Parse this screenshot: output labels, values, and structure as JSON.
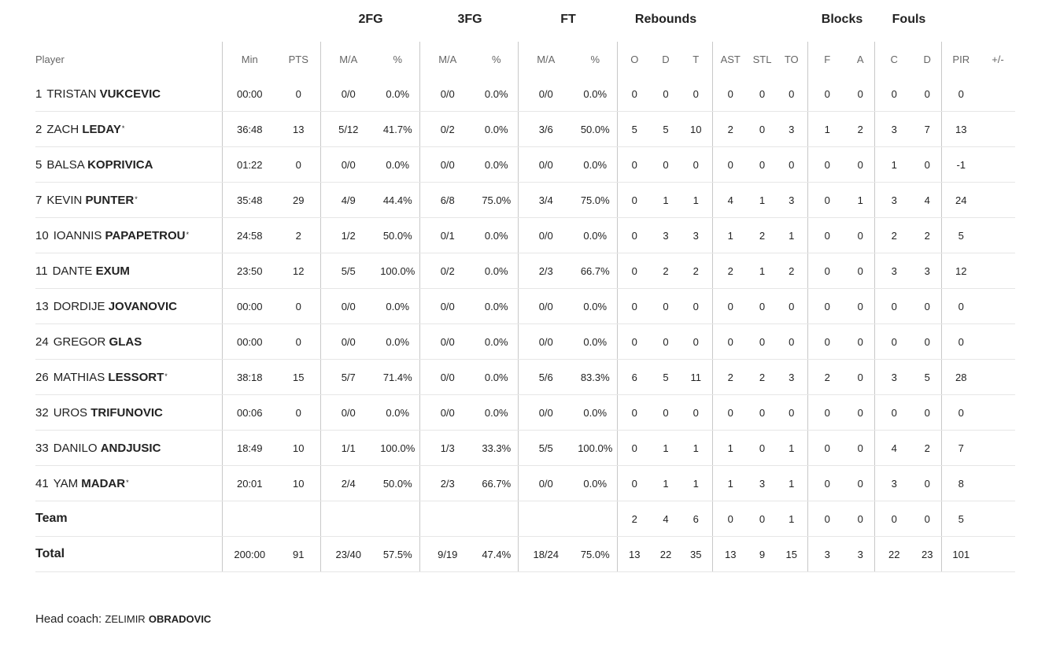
{
  "group_headers": {
    "fg2": "2FG",
    "fg3": "3FG",
    "ft": "FT",
    "rebounds": "Rebounds",
    "blocks": "Blocks",
    "fouls": "Fouls"
  },
  "columns": {
    "player": "Player",
    "min": "Min",
    "pts": "PTS",
    "fg2_ma": "M/A",
    "fg2_pct": "%",
    "fg3_ma": "M/A",
    "fg3_pct": "%",
    "ft_ma": "M/A",
    "ft_pct": "%",
    "reb_o": "O",
    "reb_d": "D",
    "reb_t": "T",
    "ast": "AST",
    "stl": "STL",
    "to": "TO",
    "blk_f": "F",
    "blk_a": "A",
    "foul_c": "C",
    "foul_d": "D",
    "pir": "PIR",
    "plusminus": "+/-"
  },
  "players": [
    {
      "num": "1",
      "first": "TRISTAN",
      "last": "VUKCEVIC",
      "starter": "",
      "min": "00:00",
      "pts": "0",
      "fg2_ma": "0/0",
      "fg2_pct": "0.0%",
      "fg3_ma": "0/0",
      "fg3_pct": "0.0%",
      "ft_ma": "0/0",
      "ft_pct": "0.0%",
      "reb_o": "0",
      "reb_d": "0",
      "reb_t": "0",
      "ast": "0",
      "stl": "0",
      "to": "0",
      "blk_f": "0",
      "blk_a": "0",
      "foul_c": "0",
      "foul_d": "0",
      "pir": "0",
      "plusminus": ""
    },
    {
      "num": "2",
      "first": "ZACH",
      "last": "LEDAY",
      "starter": "*",
      "min": "36:48",
      "pts": "13",
      "fg2_ma": "5/12",
      "fg2_pct": "41.7%",
      "fg3_ma": "0/2",
      "fg3_pct": "0.0%",
      "ft_ma": "3/6",
      "ft_pct": "50.0%",
      "reb_o": "5",
      "reb_d": "5",
      "reb_t": "10",
      "ast": "2",
      "stl": "0",
      "to": "3",
      "blk_f": "1",
      "blk_a": "2",
      "foul_c": "3",
      "foul_d": "7",
      "pir": "13",
      "plusminus": ""
    },
    {
      "num": "5",
      "first": "BALSA",
      "last": "KOPRIVICA",
      "starter": "",
      "min": "01:22",
      "pts": "0",
      "fg2_ma": "0/0",
      "fg2_pct": "0.0%",
      "fg3_ma": "0/0",
      "fg3_pct": "0.0%",
      "ft_ma": "0/0",
      "ft_pct": "0.0%",
      "reb_o": "0",
      "reb_d": "0",
      "reb_t": "0",
      "ast": "0",
      "stl": "0",
      "to": "0",
      "blk_f": "0",
      "blk_a": "0",
      "foul_c": "1",
      "foul_d": "0",
      "pir": "-1",
      "plusminus": ""
    },
    {
      "num": "7",
      "first": "KEVIN",
      "last": "PUNTER",
      "starter": "*",
      "min": "35:48",
      "pts": "29",
      "fg2_ma": "4/9",
      "fg2_pct": "44.4%",
      "fg3_ma": "6/8",
      "fg3_pct": "75.0%",
      "ft_ma": "3/4",
      "ft_pct": "75.0%",
      "reb_o": "0",
      "reb_d": "1",
      "reb_t": "1",
      "ast": "4",
      "stl": "1",
      "to": "3",
      "blk_f": "0",
      "blk_a": "1",
      "foul_c": "3",
      "foul_d": "4",
      "pir": "24",
      "plusminus": ""
    },
    {
      "num": "10",
      "first": "IOANNIS",
      "last": "PAPAPETROU",
      "starter": "*",
      "min": "24:58",
      "pts": "2",
      "fg2_ma": "1/2",
      "fg2_pct": "50.0%",
      "fg3_ma": "0/1",
      "fg3_pct": "0.0%",
      "ft_ma": "0/0",
      "ft_pct": "0.0%",
      "reb_o": "0",
      "reb_d": "3",
      "reb_t": "3",
      "ast": "1",
      "stl": "2",
      "to": "1",
      "blk_f": "0",
      "blk_a": "0",
      "foul_c": "2",
      "foul_d": "2",
      "pir": "5",
      "plusminus": ""
    },
    {
      "num": "11",
      "first": "DANTE",
      "last": "EXUM",
      "starter": "",
      "min": "23:50",
      "pts": "12",
      "fg2_ma": "5/5",
      "fg2_pct": "100.0%",
      "fg3_ma": "0/2",
      "fg3_pct": "0.0%",
      "ft_ma": "2/3",
      "ft_pct": "66.7%",
      "reb_o": "0",
      "reb_d": "2",
      "reb_t": "2",
      "ast": "2",
      "stl": "1",
      "to": "2",
      "blk_f": "0",
      "blk_a": "0",
      "foul_c": "3",
      "foul_d": "3",
      "pir": "12",
      "plusminus": ""
    },
    {
      "num": "13",
      "first": "DORDIJE",
      "last": "JOVANOVIC",
      "starter": "",
      "min": "00:00",
      "pts": "0",
      "fg2_ma": "0/0",
      "fg2_pct": "0.0%",
      "fg3_ma": "0/0",
      "fg3_pct": "0.0%",
      "ft_ma": "0/0",
      "ft_pct": "0.0%",
      "reb_o": "0",
      "reb_d": "0",
      "reb_t": "0",
      "ast": "0",
      "stl": "0",
      "to": "0",
      "blk_f": "0",
      "blk_a": "0",
      "foul_c": "0",
      "foul_d": "0",
      "pir": "0",
      "plusminus": ""
    },
    {
      "num": "24",
      "first": "GREGOR",
      "last": "GLAS",
      "starter": "",
      "min": "00:00",
      "pts": "0",
      "fg2_ma": "0/0",
      "fg2_pct": "0.0%",
      "fg3_ma": "0/0",
      "fg3_pct": "0.0%",
      "ft_ma": "0/0",
      "ft_pct": "0.0%",
      "reb_o": "0",
      "reb_d": "0",
      "reb_t": "0",
      "ast": "0",
      "stl": "0",
      "to": "0",
      "blk_f": "0",
      "blk_a": "0",
      "foul_c": "0",
      "foul_d": "0",
      "pir": "0",
      "plusminus": ""
    },
    {
      "num": "26",
      "first": "MATHIAS",
      "last": "LESSORT",
      "starter": "*",
      "min": "38:18",
      "pts": "15",
      "fg2_ma": "5/7",
      "fg2_pct": "71.4%",
      "fg3_ma": "0/0",
      "fg3_pct": "0.0%",
      "ft_ma": "5/6",
      "ft_pct": "83.3%",
      "reb_o": "6",
      "reb_d": "5",
      "reb_t": "11",
      "ast": "2",
      "stl": "2",
      "to": "3",
      "blk_f": "2",
      "blk_a": "0",
      "foul_c": "3",
      "foul_d": "5",
      "pir": "28",
      "plusminus": ""
    },
    {
      "num": "32",
      "first": "UROS",
      "last": "TRIFUNOVIC",
      "starter": "",
      "min": "00:06",
      "pts": "0",
      "fg2_ma": "0/0",
      "fg2_pct": "0.0%",
      "fg3_ma": "0/0",
      "fg3_pct": "0.0%",
      "ft_ma": "0/0",
      "ft_pct": "0.0%",
      "reb_o": "0",
      "reb_d": "0",
      "reb_t": "0",
      "ast": "0",
      "stl": "0",
      "to": "0",
      "blk_f": "0",
      "blk_a": "0",
      "foul_c": "0",
      "foul_d": "0",
      "pir": "0",
      "plusminus": ""
    },
    {
      "num": "33",
      "first": "DANILO",
      "last": "ANDJUSIC",
      "starter": "",
      "min": "18:49",
      "pts": "10",
      "fg2_ma": "1/1",
      "fg2_pct": "100.0%",
      "fg3_ma": "1/3",
      "fg3_pct": "33.3%",
      "ft_ma": "5/5",
      "ft_pct": "100.0%",
      "reb_o": "0",
      "reb_d": "1",
      "reb_t": "1",
      "ast": "1",
      "stl": "0",
      "to": "1",
      "blk_f": "0",
      "blk_a": "0",
      "foul_c": "4",
      "foul_d": "2",
      "pir": "7",
      "plusminus": ""
    },
    {
      "num": "41",
      "first": "YAM",
      "last": "MADAR",
      "starter": "*",
      "min": "20:01",
      "pts": "10",
      "fg2_ma": "2/4",
      "fg2_pct": "50.0%",
      "fg3_ma": "2/3",
      "fg3_pct": "66.7%",
      "ft_ma": "0/0",
      "ft_pct": "0.0%",
      "reb_o": "0",
      "reb_d": "1",
      "reb_t": "1",
      "ast": "1",
      "stl": "3",
      "to": "1",
      "blk_f": "0",
      "blk_a": "0",
      "foul_c": "3",
      "foul_d": "0",
      "pir": "8",
      "plusminus": ""
    }
  ],
  "team_row": {
    "label": "Team",
    "min": "",
    "pts": "",
    "fg2_ma": "",
    "fg2_pct": "",
    "fg3_ma": "",
    "fg3_pct": "",
    "ft_ma": "",
    "ft_pct": "",
    "reb_o": "2",
    "reb_d": "4",
    "reb_t": "6",
    "ast": "0",
    "stl": "0",
    "to": "1",
    "blk_f": "0",
    "blk_a": "0",
    "foul_c": "0",
    "foul_d": "0",
    "pir": "5",
    "plusminus": ""
  },
  "total_row": {
    "label": "Total",
    "min": "200:00",
    "pts": "91",
    "fg2_ma": "23/40",
    "fg2_pct": "57.5%",
    "fg3_ma": "9/19",
    "fg3_pct": "47.4%",
    "ft_ma": "18/24",
    "ft_pct": "75.0%",
    "reb_o": "13",
    "reb_d": "22",
    "reb_t": "35",
    "ast": "13",
    "stl": "9",
    "to": "15",
    "blk_f": "3",
    "blk_a": "3",
    "foul_c": "22",
    "foul_d": "23",
    "pir": "101",
    "plusminus": ""
  },
  "head_coach": {
    "label": "Head coach:",
    "first": "ZELIMIR",
    "last": "OBRADOVIC"
  }
}
